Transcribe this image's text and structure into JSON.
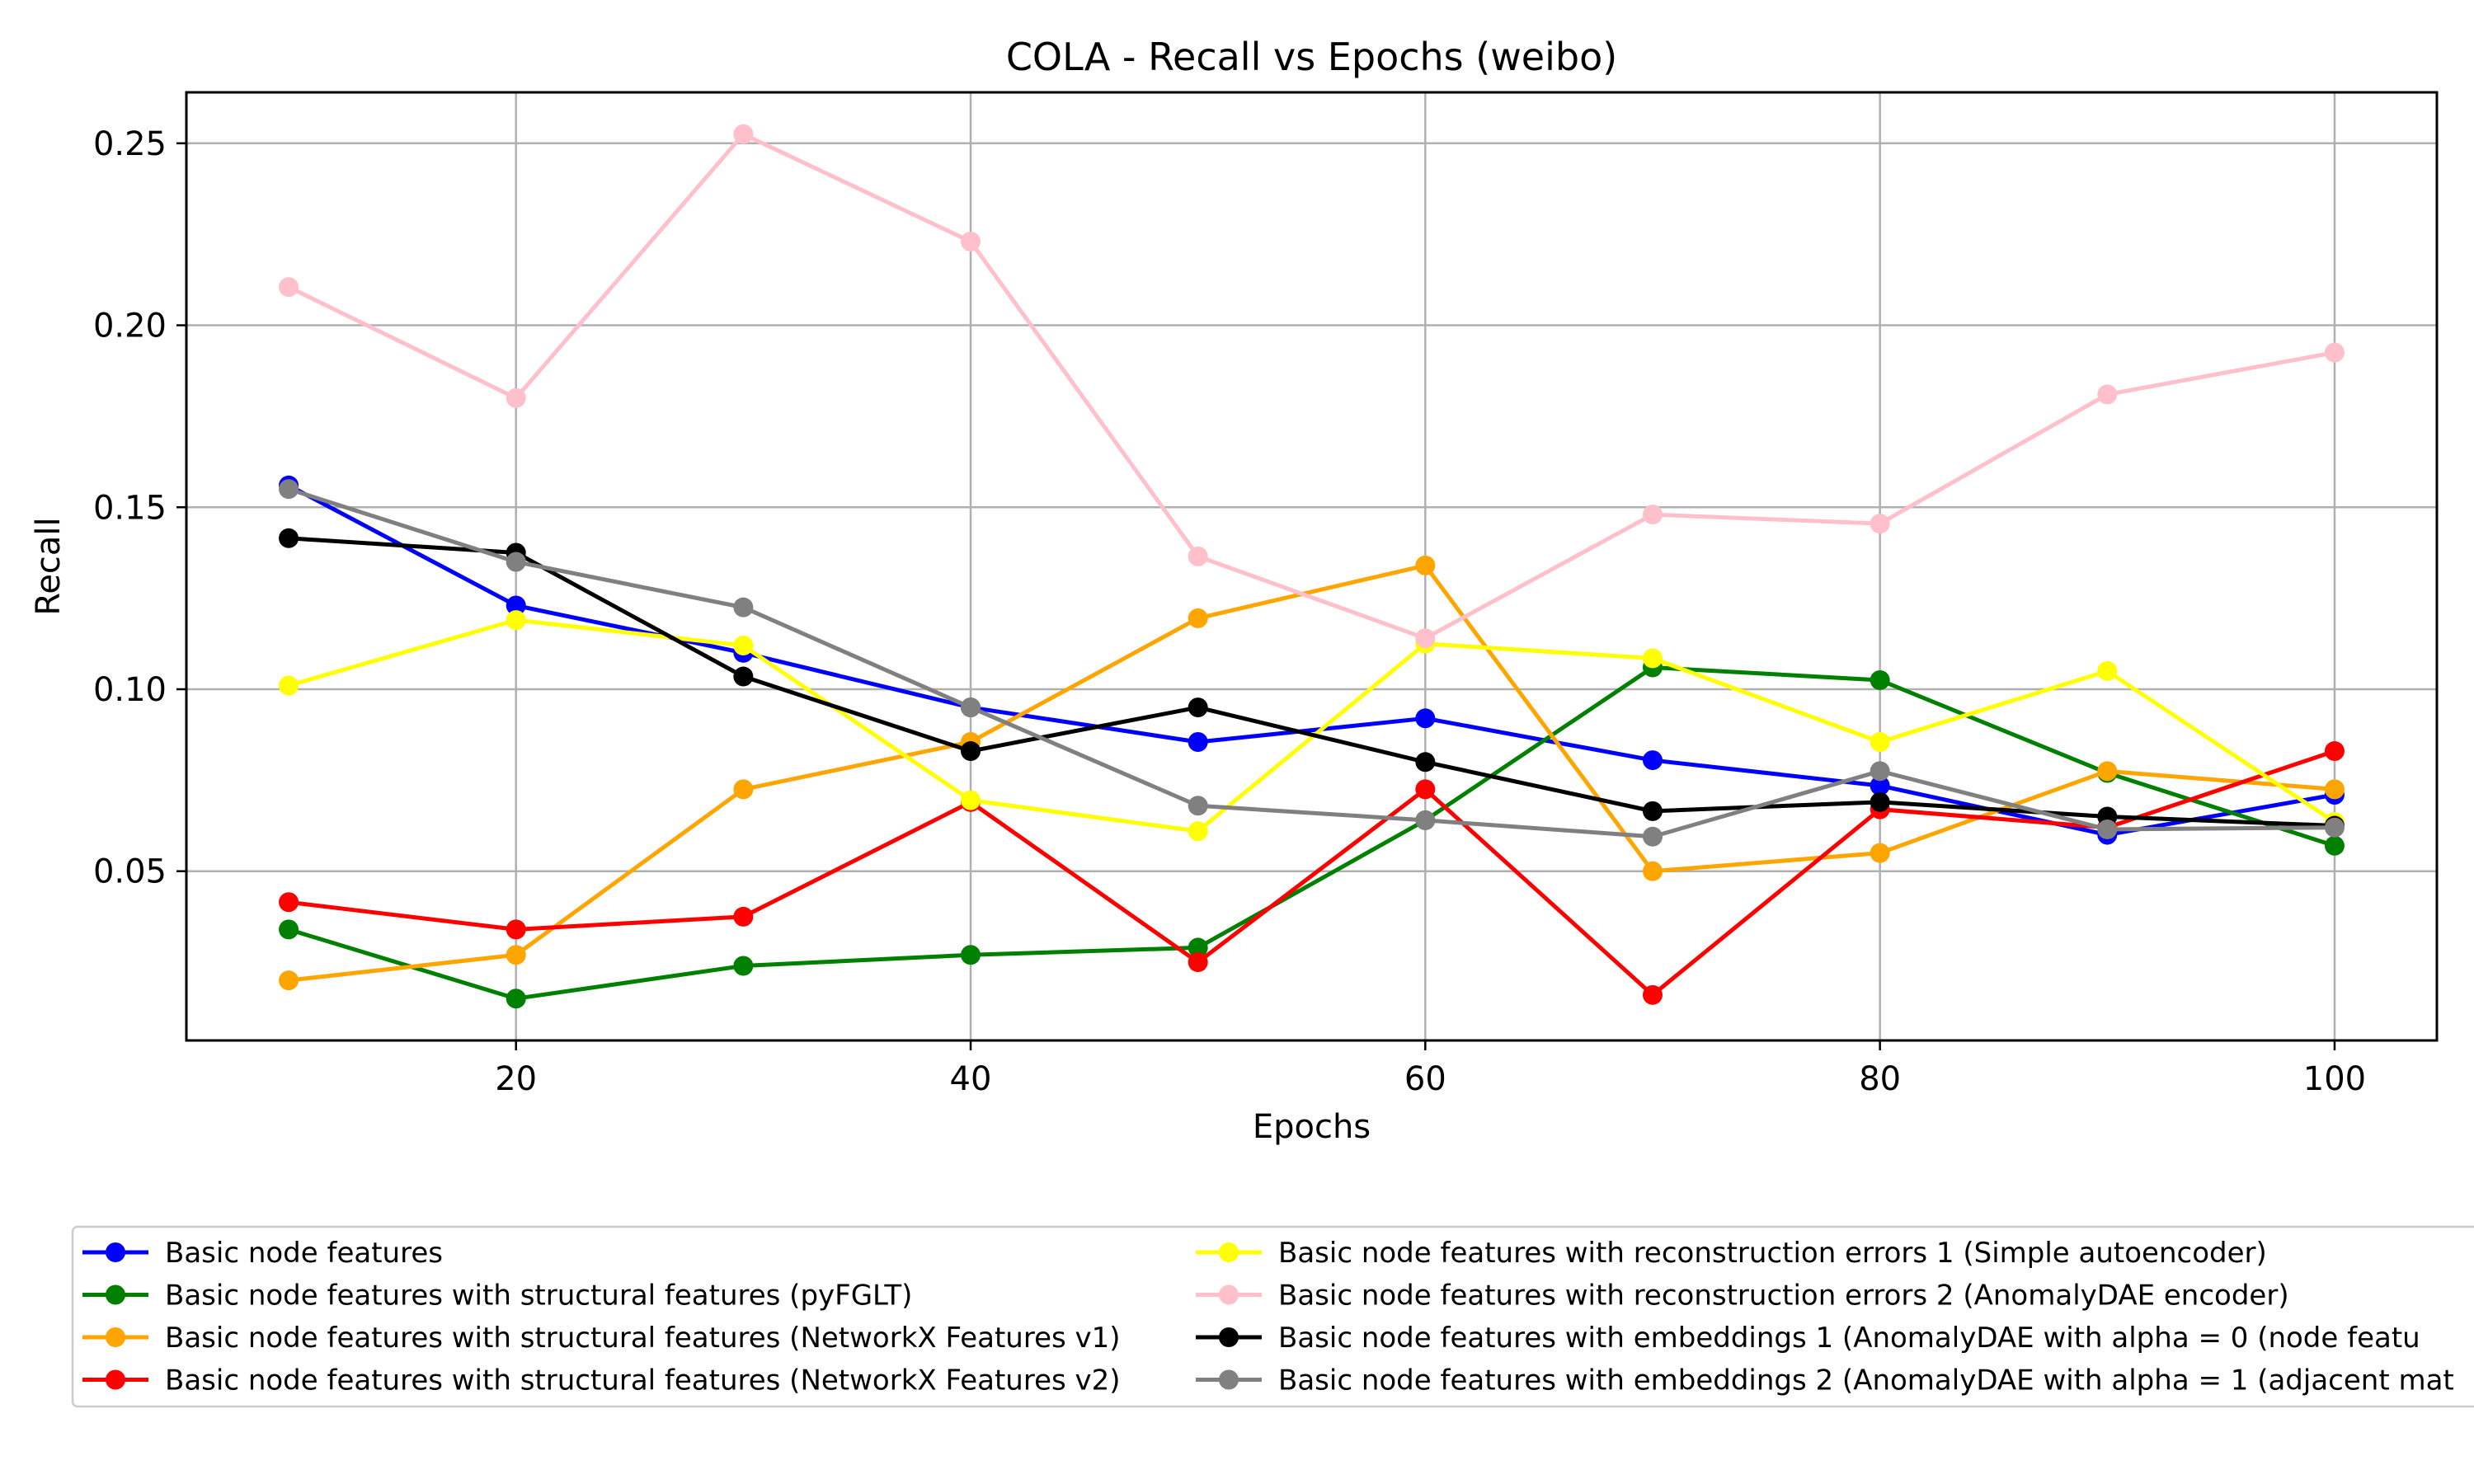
{
  "chart_data": {
    "type": "line",
    "title": "COLA - Recall vs Epochs (weibo)",
    "xlabel": "Epochs",
    "ylabel": "Recall",
    "xlim": [
      5.5,
      104.5
    ],
    "ylim": [
      0.0035,
      0.264
    ],
    "x_ticks": [
      20,
      40,
      60,
      80,
      100
    ],
    "x_tick_labels": [
      "20",
      "40",
      "60",
      "80",
      "100"
    ],
    "y_ticks": [
      0.05,
      0.1,
      0.15,
      0.2,
      0.25
    ],
    "y_tick_labels": [
      "0.05",
      "0.10",
      "0.15",
      "0.20",
      "0.25"
    ],
    "grid": true,
    "legend_position": "below plot, two columns",
    "x": [
      10,
      20,
      30,
      40,
      50,
      60,
      70,
      80,
      90,
      100
    ],
    "series": [
      {
        "name": "Basic node features",
        "color": "#0000ff",
        "values": [
          0.156,
          0.123,
          0.11,
          0.095,
          0.0855,
          0.092,
          0.0805,
          0.0735,
          0.06,
          0.071
        ]
      },
      {
        "name": "Basic node features with structural features (pyFGLT)",
        "color": "#008000",
        "values": [
          0.034,
          0.015,
          0.024,
          0.027,
          0.029,
          0.064,
          0.106,
          0.1025,
          0.077,
          0.057
        ]
      },
      {
        "name": "Basic node features with structural features (NetworkX Features v1)",
        "color": "#ffa500",
        "values": [
          0.02,
          0.027,
          0.0725,
          0.0855,
          0.1195,
          0.134,
          0.05,
          0.055,
          0.0775,
          0.0725
        ]
      },
      {
        "name": "Basic node features with structural features (NetworkX Features v2)",
        "color": "#ff0000",
        "values": [
          0.0415,
          0.034,
          0.0375,
          0.069,
          0.025,
          0.0725,
          0.016,
          0.067,
          0.062,
          0.083
        ]
      },
      {
        "name": "Basic node features with reconstruction errors 1 (Simple autoencoder)",
        "color": "#ffff00",
        "values": [
          0.101,
          0.119,
          0.112,
          0.0695,
          0.061,
          0.1125,
          0.1085,
          0.0855,
          0.105,
          0.0635
        ]
      },
      {
        "name": "Basic node features with reconstruction errors 2 (AnomalyDAE encoder)",
        "color": "#ffc0cb",
        "values": [
          0.2105,
          0.18,
          0.2525,
          0.223,
          0.1365,
          0.114,
          0.148,
          0.1455,
          0.181,
          0.1925
        ]
      },
      {
        "name": "Basic node features with embeddings 1 (AnomalyDAE with alpha = 0 (node featu",
        "color": "#000000",
        "values": [
          0.1415,
          0.1375,
          0.1035,
          0.083,
          0.095,
          0.08,
          0.0665,
          0.069,
          0.065,
          0.0625
        ]
      },
      {
        "name": "Basic node features with embeddings 2 (AnomalyDAE with alpha = 1 (adjacent mat",
        "color": "#808080",
        "values": [
          0.155,
          0.135,
          0.1225,
          0.095,
          0.068,
          0.064,
          0.0595,
          0.0775,
          0.0615,
          0.062
        ]
      }
    ]
  }
}
